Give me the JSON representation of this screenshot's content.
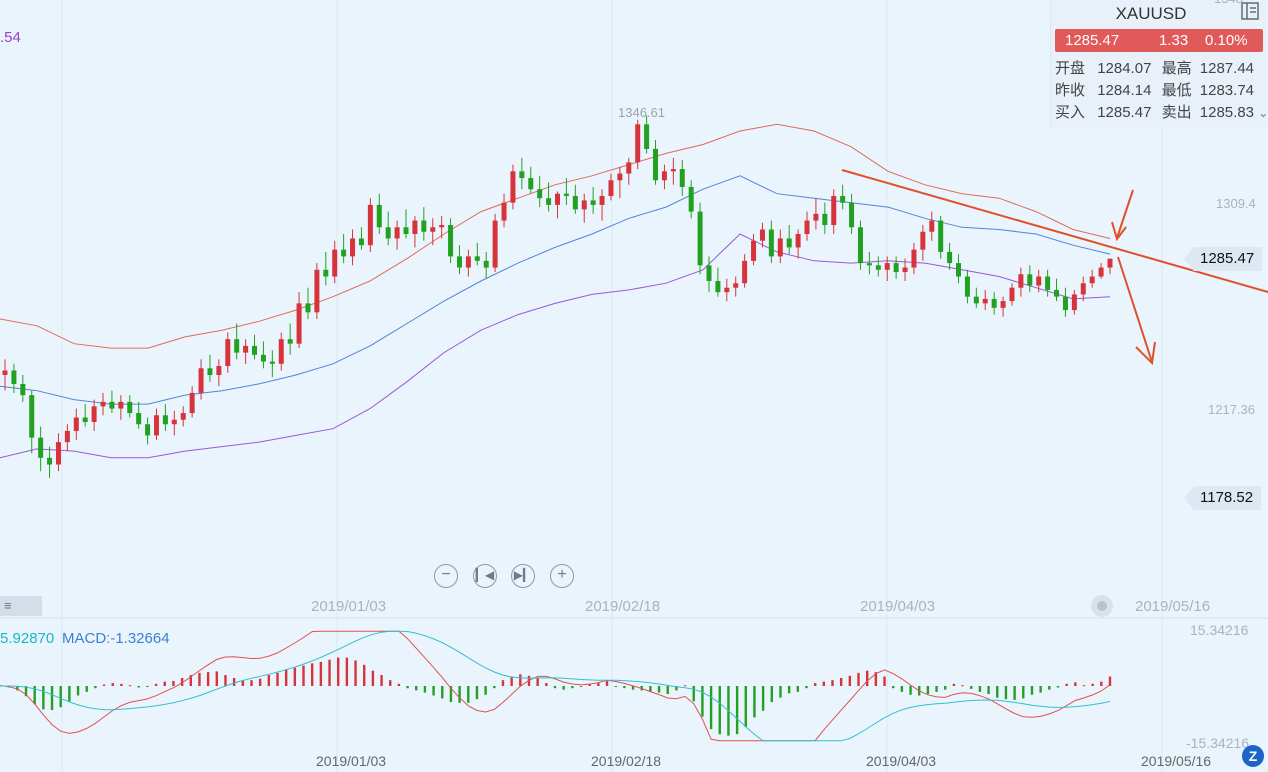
{
  "quote": {
    "symbol": "XAUUSD",
    "price": "1285.47",
    "change": "1.33",
    "change_pct": "0.10%",
    "open_label": "开盘",
    "open": "1284.07",
    "high_label": "最高",
    "high": "1287.44",
    "prev_close_label": "昨收",
    "prev_close": "1284.14",
    "low_label": "最低",
    "low": "1283.74",
    "bid_label": "买入",
    "bid": "1285.47",
    "ask_label": "卖出",
    "ask": "1285.83"
  },
  "left_indicator_value": ".54",
  "price_axis": {
    "top_partial": "1348",
    "labels": [
      "1309.4",
      "1217.36"
    ],
    "current_tag": "1285.47",
    "low_tag": "1178.52"
  },
  "peak_label": "1346.61",
  "dates_upper": [
    "2019/01/03",
    "2019/02/18",
    "2019/04/03",
    "2019/05/16"
  ],
  "dates_lower": [
    "2019/01/03",
    "2019/02/18",
    "2019/04/03",
    "2019/05/16"
  ],
  "macd_legend": {
    "dif": "5.92870",
    "macd": "MACD:-1.32664"
  },
  "macd_axis": {
    "top": "15.34216",
    "bottom": "-15.34216"
  },
  "icons": [
    "minus-circle-icon",
    "skip-back-icon",
    "skip-forward-icon",
    "plus-circle-icon",
    "menu-icon",
    "settings-dot-icon",
    "sidebar-toggle-icon",
    "brand-logo-icon"
  ],
  "colors": {
    "up": "#d6333a",
    "down": "#22a022",
    "quote_bar": "#e05a5a",
    "trendline": "#e0502a",
    "boll_upper": "#e06a5a",
    "boll_mid": "#4f86d6",
    "boll_lower": "#9a58d6",
    "dif_line": "#e05050",
    "dea_line": "#30c0d0"
  },
  "chart_data": [
    {
      "type": "candlestick",
      "title": "XAUUSD",
      "y_ticks": [
        1309.4,
        1217.36
      ],
      "x_ticks": [
        "2019/01/03",
        "2019/02/18",
        "2019/04/03",
        "2019/05/16"
      ],
      "ohlc": [
        [
          1233,
          1240,
          1226,
          1235
        ],
        [
          1235,
          1238,
          1225,
          1229
        ],
        [
          1229,
          1233,
          1221,
          1224
        ],
        [
          1224,
          1226,
          1198,
          1205
        ],
        [
          1205,
          1210,
          1190,
          1196
        ],
        [
          1196,
          1201,
          1187,
          1193
        ],
        [
          1193,
          1207,
          1190,
          1203
        ],
        [
          1203,
          1211,
          1199,
          1208
        ],
        [
          1208,
          1218,
          1204,
          1214
        ],
        [
          1214,
          1220,
          1210,
          1212
        ],
        [
          1212,
          1222,
          1208,
          1219
        ],
        [
          1219,
          1225,
          1215,
          1221
        ],
        [
          1221,
          1226,
          1216,
          1218
        ],
        [
          1218,
          1224,
          1213,
          1221
        ],
        [
          1221,
          1224,
          1214,
          1216
        ],
        [
          1216,
          1221,
          1209,
          1211
        ],
        [
          1211,
          1214,
          1202,
          1206
        ],
        [
          1206,
          1218,
          1204,
          1215
        ],
        [
          1215,
          1220,
          1208,
          1211
        ],
        [
          1211,
          1217,
          1206,
          1213
        ],
        [
          1213,
          1219,
          1210,
          1216
        ],
        [
          1216,
          1228,
          1214,
          1225
        ],
        [
          1225,
          1240,
          1222,
          1236
        ],
        [
          1236,
          1242,
          1230,
          1233
        ],
        [
          1233,
          1240,
          1228,
          1237
        ],
        [
          1237,
          1252,
          1234,
          1249
        ],
        [
          1249,
          1256,
          1240,
          1243
        ],
        [
          1243,
          1249,
          1238,
          1246
        ],
        [
          1246,
          1251,
          1240,
          1242
        ],
        [
          1242,
          1248,
          1236,
          1239
        ],
        [
          1239,
          1244,
          1232,
          1238
        ],
        [
          1238,
          1252,
          1235,
          1249
        ],
        [
          1249,
          1256,
          1242,
          1247
        ],
        [
          1247,
          1270,
          1245,
          1265
        ],
        [
          1265,
          1272,
          1258,
          1261
        ],
        [
          1261,
          1283,
          1258,
          1280
        ],
        [
          1280,
          1288,
          1273,
          1277
        ],
        [
          1277,
          1293,
          1274,
          1289
        ],
        [
          1289,
          1296,
          1283,
          1286
        ],
        [
          1286,
          1298,
          1282,
          1294
        ],
        [
          1294,
          1299,
          1289,
          1291
        ],
        [
          1291,
          1312,
          1288,
          1309
        ],
        [
          1309,
          1314,
          1296,
          1299
        ],
        [
          1299,
          1306,
          1291,
          1294
        ],
        [
          1294,
          1302,
          1289,
          1299
        ],
        [
          1299,
          1307,
          1294,
          1296
        ],
        [
          1296,
          1304,
          1290,
          1302
        ],
        [
          1302,
          1308,
          1293,
          1297
        ],
        [
          1297,
          1303,
          1291,
          1299
        ],
        [
          1299,
          1304,
          1294,
          1300
        ],
        [
          1300,
          1303,
          1283,
          1286
        ],
        [
          1286,
          1291,
          1278,
          1281
        ],
        [
          1281,
          1289,
          1277,
          1286
        ],
        [
          1286,
          1292,
          1282,
          1284
        ],
        [
          1284,
          1288,
          1276,
          1281
        ],
        [
          1281,
          1305,
          1279,
          1302
        ],
        [
          1302,
          1314,
          1299,
          1310
        ],
        [
          1310,
          1327,
          1307,
          1324
        ],
        [
          1324,
          1330,
          1316,
          1321
        ],
        [
          1321,
          1326,
          1314,
          1316
        ],
        [
          1316,
          1322,
          1308,
          1312
        ],
        [
          1312,
          1319,
          1306,
          1309
        ],
        [
          1309,
          1315,
          1303,
          1314
        ],
        [
          1314,
          1321,
          1309,
          1313
        ],
        [
          1313,
          1318,
          1305,
          1307
        ],
        [
          1307,
          1314,
          1301,
          1311
        ],
        [
          1311,
          1317,
          1305,
          1309
        ],
        [
          1309,
          1316,
          1302,
          1313
        ],
        [
          1313,
          1323,
          1311,
          1320
        ],
        [
          1320,
          1326,
          1312,
          1323
        ],
        [
          1323,
          1330,
          1318,
          1328
        ],
        [
          1328,
          1347,
          1325,
          1345
        ],
        [
          1345,
          1349,
          1332,
          1334
        ],
        [
          1334,
          1338,
          1318,
          1320
        ],
        [
          1320,
          1327,
          1316,
          1324
        ],
        [
          1324,
          1330,
          1318,
          1325
        ],
        [
          1325,
          1329,
          1313,
          1317
        ],
        [
          1317,
          1320,
          1303,
          1306
        ],
        [
          1306,
          1310,
          1278,
          1282
        ],
        [
          1282,
          1286,
          1270,
          1275
        ],
        [
          1275,
          1281,
          1268,
          1270
        ],
        [
          1270,
          1276,
          1266,
          1272
        ],
        [
          1272,
          1277,
          1268,
          1274
        ],
        [
          1274,
          1287,
          1272,
          1284
        ],
        [
          1284,
          1296,
          1282,
          1293
        ],
        [
          1293,
          1301,
          1290,
          1298
        ],
        [
          1298,
          1302,
          1283,
          1286
        ],
        [
          1286,
          1298,
          1283,
          1294
        ],
        [
          1294,
          1300,
          1287,
          1290
        ],
        [
          1290,
          1298,
          1285,
          1296
        ],
        [
          1296,
          1306,
          1293,
          1302
        ],
        [
          1302,
          1312,
          1298,
          1305
        ],
        [
          1305,
          1310,
          1296,
          1300
        ],
        [
          1300,
          1316,
          1296,
          1313
        ],
        [
          1313,
          1318,
          1307,
          1310
        ],
        [
          1310,
          1314,
          1296,
          1299
        ],
        [
          1299,
          1302,
          1280,
          1283
        ],
        [
          1283,
          1288,
          1278,
          1282
        ],
        [
          1282,
          1286,
          1277,
          1280
        ],
        [
          1280,
          1286,
          1275,
          1283
        ],
        [
          1283,
          1286,
          1276,
          1279
        ],
        [
          1279,
          1285,
          1275,
          1281
        ],
        [
          1281,
          1292,
          1278,
          1289
        ],
        [
          1289,
          1300,
          1284,
          1297
        ],
        [
          1297,
          1306,
          1293,
          1302
        ],
        [
          1302,
          1304,
          1285,
          1288
        ],
        [
          1288,
          1292,
          1280,
          1283
        ],
        [
          1283,
          1287,
          1274,
          1277
        ],
        [
          1277,
          1280,
          1265,
          1268
        ],
        [
          1268,
          1272,
          1263,
          1265
        ],
        [
          1265,
          1271,
          1262,
          1267
        ],
        [
          1267,
          1270,
          1260,
          1263
        ],
        [
          1263,
          1268,
          1259,
          1266
        ],
        [
          1266,
          1274,
          1264,
          1272
        ],
        [
          1272,
          1281,
          1268,
          1278
        ],
        [
          1278,
          1282,
          1270,
          1273
        ],
        [
          1273,
          1280,
          1270,
          1277
        ],
        [
          1277,
          1280,
          1268,
          1271
        ],
        [
          1271,
          1276,
          1266,
          1268
        ],
        [
          1268,
          1272,
          1259,
          1262
        ],
        [
          1262,
          1271,
          1260,
          1269
        ],
        [
          1269,
          1277,
          1266,
          1274
        ],
        [
          1274,
          1280,
          1272,
          1277
        ],
        [
          1277,
          1283,
          1276,
          1281
        ],
        [
          1281,
          1284,
          1278,
          1285
        ]
      ],
      "overlays": [
        {
          "name": "upper",
          "values": [
            1258,
            1255,
            1247,
            1245,
            1245,
            1250,
            1253,
            1257,
            1262,
            1268,
            1275,
            1285,
            1296,
            1306,
            1312,
            1318,
            1322,
            1327,
            1332,
            1336,
            1342,
            1345,
            1342,
            1335,
            1324,
            1318,
            1314,
            1312,
            1306,
            1298,
            1294
          ]
        },
        {
          "name": "mid",
          "values": [
            1228,
            1226,
            1222,
            1220,
            1220,
            1224,
            1226,
            1229,
            1233,
            1238,
            1246,
            1256,
            1266,
            1275,
            1283,
            1290,
            1296,
            1303,
            1308,
            1316,
            1322,
            1314,
            1312,
            1310,
            1308,
            1303,
            1299,
            1298,
            1296,
            1291,
            1287
          ]
        },
        {
          "name": "lower",
          "values": [
            1196,
            1200,
            1199,
            1196,
            1196,
            1199,
            1201,
            1203,
            1206,
            1209,
            1218,
            1230,
            1243,
            1253,
            1260,
            1265,
            1269,
            1271,
            1274,
            1280,
            1296,
            1288,
            1284,
            1283,
            1284,
            1283,
            1280,
            1277,
            1272,
            1267,
            1268
          ]
        }
      ]
    },
    {
      "type": "bar",
      "title": "MACD",
      "ylim": [
        -15.34216,
        15.34216
      ],
      "series": [
        {
          "name": "MACD:-1.32664",
          "values": [
            0.2,
            -0.4,
            -1.2,
            -2.8,
            -5,
            -6.4,
            -6.6,
            -5.8,
            -4.2,
            -2.6,
            -1.6,
            -0.6,
            0.4,
            0.8,
            0.6,
            0.2,
            -0.4,
            -0.2,
            0.6,
            1.2,
            1.4,
            2.2,
            3,
            3.6,
            3.8,
            4,
            3,
            2.2,
            1.6,
            1.6,
            2,
            3,
            3.6,
            4.6,
            5,
            5.6,
            6.2,
            6.6,
            7.2,
            7.8,
            7.8,
            7,
            5.8,
            4.2,
            3,
            1.6,
            0.6,
            -0.6,
            -1.2,
            -1.8,
            -2.6,
            -3.4,
            -4.4,
            -4.6,
            -4.6,
            -3.6,
            -2.4,
            -0.6,
            1.6,
            2.6,
            3.2,
            2.8,
            2.2,
            0.8,
            -0.6,
            -1,
            -0.6,
            -0.2,
            0.4,
            0.8,
            1.4,
            -0.2,
            -0.6,
            -1,
            -1.2,
            -1.6,
            -1.8,
            -2.2,
            -1.2,
            0.2,
            -4.2,
            -8.4,
            -11.8,
            -13.2,
            -13.6,
            -13.2,
            -11.2,
            -8.6,
            -6.8,
            -4.4,
            -3.2,
            -2,
            -1.6,
            -0.6,
            0.8,
            1.2,
            1.6,
            2.2,
            2.8,
            3.6,
            4.2,
            3.8,
            2.6,
            -0.6,
            -1.6,
            -2.4,
            -2.6,
            -2.2,
            -1.6,
            -1,
            0.6,
            0.2,
            -0.8,
            -1.6,
            -2.2,
            -3.2,
            -3.6,
            -3.8,
            -3.4,
            -2.4,
            -1.8,
            -1,
            -0.4,
            0.6,
            1,
            0.2,
            0.6,
            1.2,
            2.6
          ]
        }
      ]
    }
  ]
}
